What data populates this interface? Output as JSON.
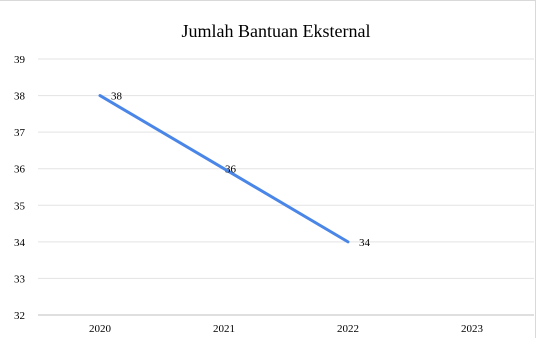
{
  "chart_data": {
    "type": "line",
    "title": "Jumlah Bantuan Eksternal",
    "categories": [
      "2020",
      "2021",
      "2022",
      "2023"
    ],
    "series": [
      {
        "values": [
          38,
          36,
          34,
          null
        ],
        "color": "#4a86e8"
      }
    ],
    "data_labels": [
      "38",
      "36",
      "34"
    ],
    "y_ticks": [
      "32",
      "33",
      "34",
      "35",
      "36",
      "37",
      "38",
      "39"
    ],
    "ylim": [
      32,
      39
    ],
    "grid": true,
    "xlabel": "",
    "ylabel": ""
  }
}
